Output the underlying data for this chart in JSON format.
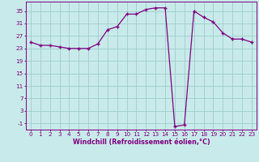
{
  "x": [
    0,
    1,
    2,
    3,
    4,
    5,
    6,
    7,
    8,
    9,
    10,
    11,
    12,
    13,
    14,
    15,
    16,
    17,
    18,
    19,
    20,
    21,
    22,
    23
  ],
  "y": [
    25,
    24,
    24,
    23.5,
    23,
    23,
    23,
    24.5,
    29,
    30,
    34,
    34,
    35.5,
    36,
    36,
    -2,
    -1.5,
    35,
    33,
    31.5,
    28,
    26,
    26,
    25
  ],
  "line_color": "#800080",
  "marker_color": "#800080",
  "bg_color": "#c8eaea",
  "grid_color": "#a0cccc",
  "axis_color": "#800080",
  "xlabel": "Windchill (Refroidissement éolien,°C)",
  "ylim": [
    -3,
    38
  ],
  "xlim": [
    -0.5,
    23.5
  ],
  "yticks": [
    -1,
    3,
    7,
    11,
    15,
    19,
    23,
    27,
    31,
    35
  ],
  "xticks": [
    0,
    1,
    2,
    3,
    4,
    5,
    6,
    7,
    8,
    9,
    10,
    11,
    12,
    13,
    14,
    15,
    16,
    17,
    18,
    19,
    20,
    21,
    22,
    23
  ],
  "xlabel_fontsize": 5.8,
  "tick_fontsize": 5.2
}
